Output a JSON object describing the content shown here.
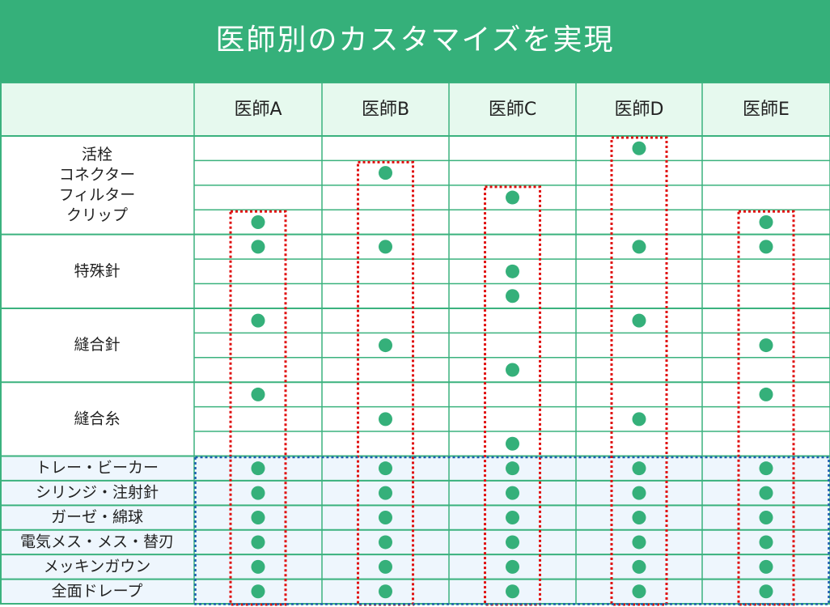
{
  "title": "医師別のカスタマイズを実現",
  "columns": [
    "医師A",
    "医師B",
    "医師C",
    "医師D",
    "医師E"
  ],
  "groups": [
    {
      "label": [
        "活栓",
        "コネクター",
        "フィルター",
        "クリップ"
      ],
      "rows": [
        [
          false,
          false,
          false,
          true,
          false
        ],
        [
          false,
          true,
          false,
          false,
          false
        ],
        [
          false,
          false,
          true,
          false,
          false
        ],
        [
          true,
          false,
          false,
          false,
          true
        ]
      ]
    },
    {
      "label": [
        "特殊針"
      ],
      "rows": [
        [
          true,
          true,
          false,
          true,
          true
        ],
        [
          false,
          false,
          true,
          false,
          false
        ],
        [
          false,
          false,
          true,
          false,
          false
        ]
      ]
    },
    {
      "label": [
        "縫合針"
      ],
      "rows": [
        [
          true,
          false,
          false,
          true,
          false
        ],
        [
          false,
          true,
          false,
          false,
          true
        ],
        [
          false,
          false,
          true,
          false,
          false
        ]
      ]
    },
    {
      "label": [
        "縫合糸"
      ],
      "rows": [
        [
          true,
          false,
          false,
          false,
          true
        ],
        [
          false,
          true,
          false,
          true,
          false
        ],
        [
          false,
          false,
          true,
          false,
          false
        ]
      ]
    },
    {
      "label": [
        "トレー・ビーカー"
      ],
      "rows": [
        [
          true,
          true,
          true,
          true,
          true
        ]
      ]
    },
    {
      "label": [
        "シリンジ・注射針"
      ],
      "rows": [
        [
          true,
          true,
          true,
          true,
          true
        ]
      ]
    },
    {
      "label": [
        "ガーゼ・綿球"
      ],
      "rows": [
        [
          true,
          true,
          true,
          true,
          true
        ]
      ]
    },
    {
      "label": [
        "電気メス・メス・替刃"
      ],
      "rows": [
        [
          true,
          true,
          true,
          true,
          true
        ]
      ]
    },
    {
      "label": [
        "メッキンガウン"
      ],
      "rows": [
        [
          true,
          true,
          true,
          true,
          true
        ]
      ]
    },
    {
      "label": [
        "全面ドレープ"
      ],
      "rows": [
        [
          true,
          true,
          true,
          true,
          true
        ]
      ]
    }
  ]
}
